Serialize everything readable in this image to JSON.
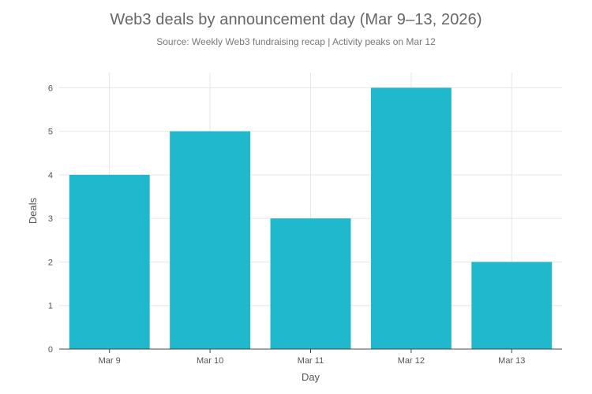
{
  "chart_data": {
    "type": "bar",
    "title": "Web3 deals by announcement day (Mar 9–13, 2026)",
    "subtitle": "Source: Weekly Web3 fundraising recap | Activity peaks on Mar 12",
    "categories": [
      "Mar 9",
      "Mar 10",
      "Mar 11",
      "Mar 12",
      "Mar 13"
    ],
    "values": [
      4,
      5,
      3,
      6,
      2
    ],
    "xlabel": "Day",
    "ylabel": "Deals",
    "ylim": [
      0,
      6.35
    ],
    "yticks": [
      0,
      1,
      2,
      3,
      4,
      5,
      6
    ],
    "grid": true,
    "legend": "none",
    "bar_color": "#20b8cc",
    "grid_color": "#e6e6e6",
    "axis_color": "#444444"
  }
}
